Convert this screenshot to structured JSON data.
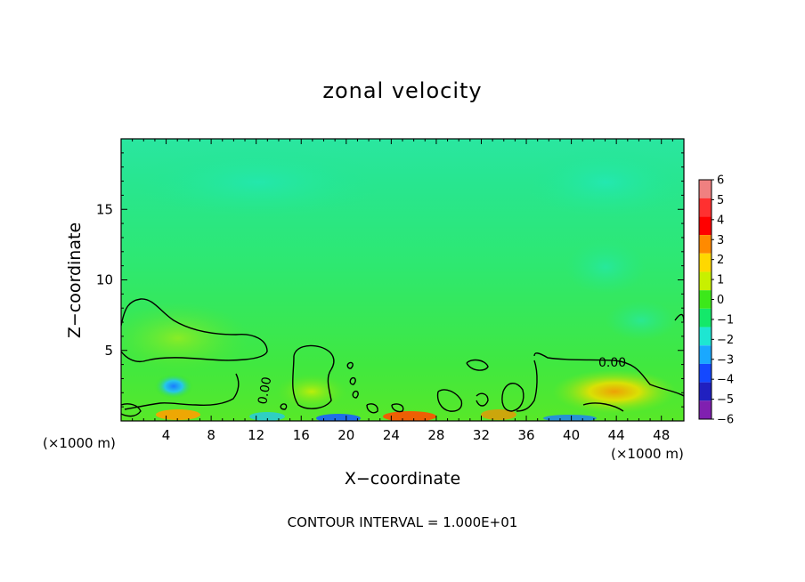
{
  "chart_data": {
    "type": "heatmap",
    "title": "zonal velocity",
    "xlabel": "X−coordinate",
    "ylabel": "Z−coordinate",
    "x_unit_left": "(×1000 m)",
    "x_unit_right": "(×1000 m)",
    "xlim": [
      0,
      50
    ],
    "ylim": [
      0,
      20
    ],
    "x_ticks": [
      4,
      8,
      12,
      16,
      20,
      24,
      28,
      32,
      36,
      40,
      44,
      48
    ],
    "x_tick_labels": [
      "4",
      "8",
      "12",
      "16",
      "20",
      "24",
      "28",
      "32",
      "36",
      "40",
      "44",
      "48"
    ],
    "y_ticks": [
      5,
      10,
      15
    ],
    "y_tick_labels": [
      "5",
      "10",
      "15"
    ],
    "colorbar": {
      "levels": [
        6,
        5,
        4,
        3,
        2,
        1,
        0,
        -1,
        -2,
        -3,
        -4,
        -5,
        -6
      ],
      "labels": [
        "6",
        "5",
        "4",
        "3",
        "2",
        "1",
        "0",
        "−1",
        "−2",
        "−3",
        "−4",
        "−5",
        "−6"
      ],
      "colors": [
        "#f08080",
        "#ff3030",
        "#ff0000",
        "#ff8a00",
        "#ffd800",
        "#c8f000",
        "#3ce81a",
        "#14e86a",
        "#1ee6d2",
        "#1aa8ff",
        "#1448ff",
        "#2020c0",
        "#8020b0"
      ]
    },
    "contour_label": "0.00",
    "contour_interval_text": "CONTOUR INTERVAL = 1.000E+01"
  }
}
